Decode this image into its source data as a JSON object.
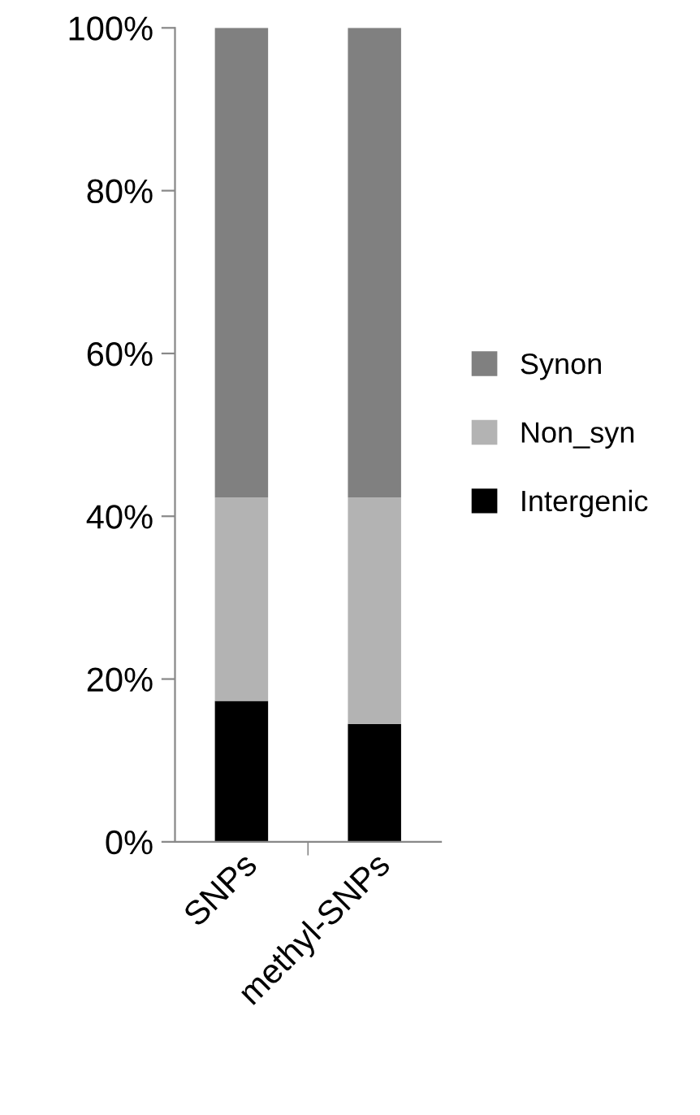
{
  "chart_data": {
    "type": "bar",
    "stacked": true,
    "categories": [
      "SNPs",
      "methyl-SNPs"
    ],
    "series": [
      {
        "name": "Intergenic",
        "color": "#000000",
        "values": [
          17.3,
          14.5
        ]
      },
      {
        "name": "Non_syn",
        "color": "#b3b3b3",
        "values": [
          25.0,
          27.8
        ]
      },
      {
        "name": "Synon",
        "color": "#808080",
        "values": [
          57.7,
          57.7
        ]
      }
    ],
    "ylim": [
      0,
      100
    ],
    "yticks": [
      {
        "value": 0,
        "label": "0%"
      },
      {
        "value": 20,
        "label": "20%"
      },
      {
        "value": 40,
        "label": "40%"
      },
      {
        "value": 60,
        "label": "60%"
      },
      {
        "value": 80,
        "label": "80%"
      },
      {
        "value": 100,
        "label": "100%"
      }
    ],
    "grid": false,
    "legend": "right"
  }
}
